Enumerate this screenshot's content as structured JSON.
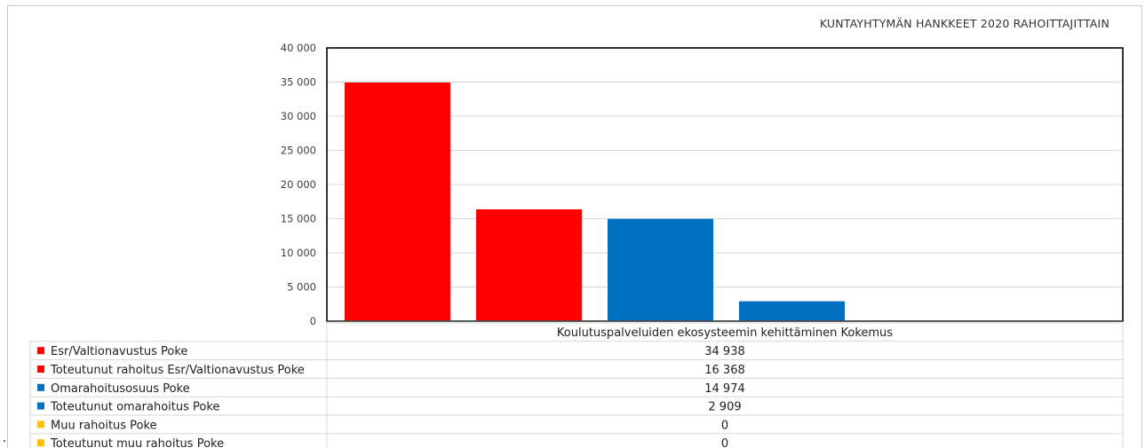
{
  "chart_data": {
    "type": "bar",
    "title": "KUNTAYHTYMÄN HANKKEET 2020 RAHOITTAJITTAIN",
    "category": "Koulutuspalveluiden ekosysteemin kehittäminen Kokemus",
    "ylim": [
      0,
      40000
    ],
    "yticks": [
      0,
      5000,
      10000,
      15000,
      20000,
      25000,
      30000,
      35000,
      40000
    ],
    "ytick_labels": [
      "0",
      "5 000",
      "10 000",
      "15 000",
      "20 000",
      "25 000",
      "30 000",
      "35 000",
      "40 000"
    ],
    "grid": true,
    "legend_placement": "bottom data table",
    "series": [
      {
        "name": "Esr/Valtionavustus Poke",
        "value": 34938,
        "label": "34 938",
        "color": "#ff0000"
      },
      {
        "name": "Toteutunut rahoitus Esr/Valtionavustus Poke",
        "value": 16368,
        "label": "16 368",
        "color": "#ff0000"
      },
      {
        "name": "Omarahoitusosuus Poke",
        "value": 14974,
        "label": "14 974",
        "color": "#0070c0"
      },
      {
        "name": "Toteutunut omarahoitus Poke",
        "value": 2909,
        "label": "2 909",
        "color": "#0070c0"
      },
      {
        "name": "Muu rahoitus Poke",
        "value": 0,
        "label": "0",
        "color": "#ffc000"
      },
      {
        "name": "Toteutunut muu rahoitus Poke",
        "value": 0,
        "label": "0",
        "color": "#ffc000"
      }
    ]
  }
}
